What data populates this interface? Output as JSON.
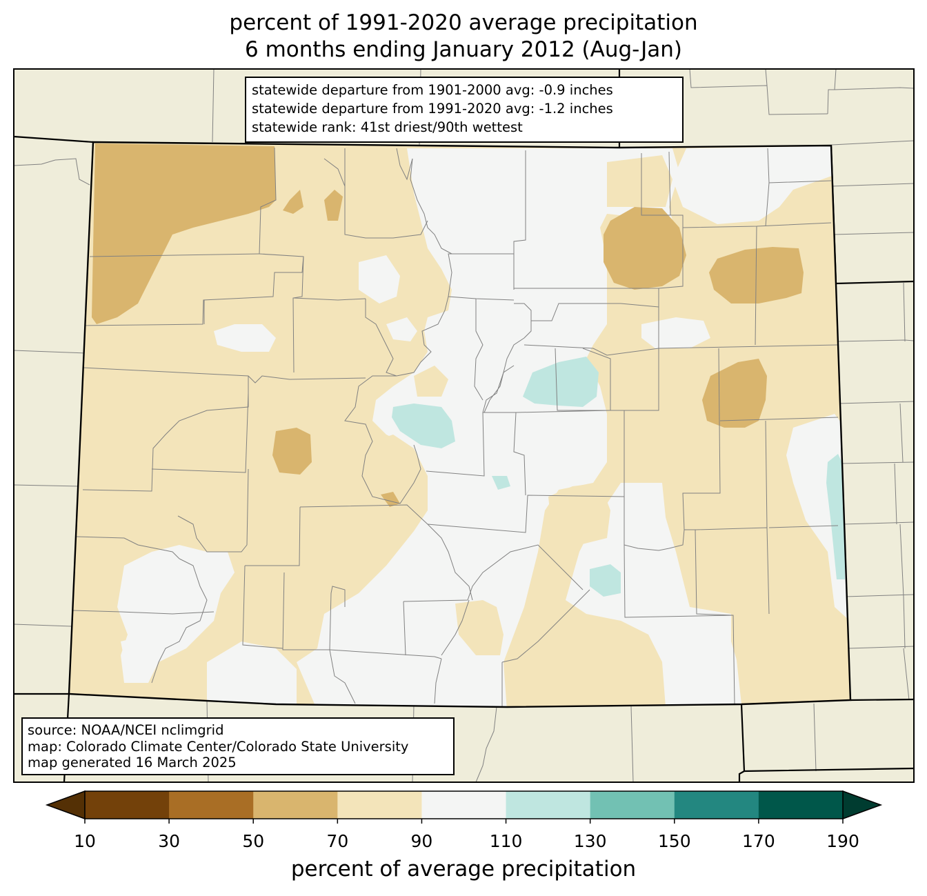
{
  "title": {
    "line1": "percent of 1991-2020 average precipitation",
    "line2": "6 months ending January 2012 (Aug-Jan)"
  },
  "stats_box": {
    "line1": "statewide departure from 1901-2000 avg: -0.9 inches",
    "line2": "statewide departure from 1991-2020 avg: -1.2 inches",
    "line3": "statewide rank: 41st driest/90th wettest"
  },
  "source_box": {
    "line1": "source: NOAA/NCEI nclimgrid",
    "line2": "map: Colorado Climate Center/Colorado State University",
    "line3": "map generated 16 March 2025"
  },
  "colorbar": {
    "label": "percent of average precipitation",
    "ticks": [
      "10",
      "30",
      "50",
      "70",
      "90",
      "110",
      "130",
      "150",
      "170",
      "190"
    ],
    "under_color": "#543005",
    "over_color": "#003c30",
    "bins": [
      {
        "range": "10-30",
        "color": "#73410a"
      },
      {
        "range": "30-50",
        "color": "#a96e25"
      },
      {
        "range": "50-70",
        "color": "#d9b56e"
      },
      {
        "range": "70-90",
        "color": "#f3e4ba"
      },
      {
        "range": "90-110",
        "color": "#f4f5f4"
      },
      {
        "range": "110-130",
        "color": "#bfe6e0"
      },
      {
        "range": "130-150",
        "color": "#72c1b3"
      },
      {
        "range": "150-170",
        "color": "#238780"
      },
      {
        "range": "170-190",
        "color": "#00574a"
      }
    ]
  },
  "map_colors": {
    "outside_land": "#efedda",
    "p50_70": "#d9b56e",
    "p70_90": "#f3e4ba",
    "p90_110": "#f4f5f4",
    "p110_130": "#bfe6e0",
    "county_lines": "#808080",
    "state_lines": "#000000"
  }
}
